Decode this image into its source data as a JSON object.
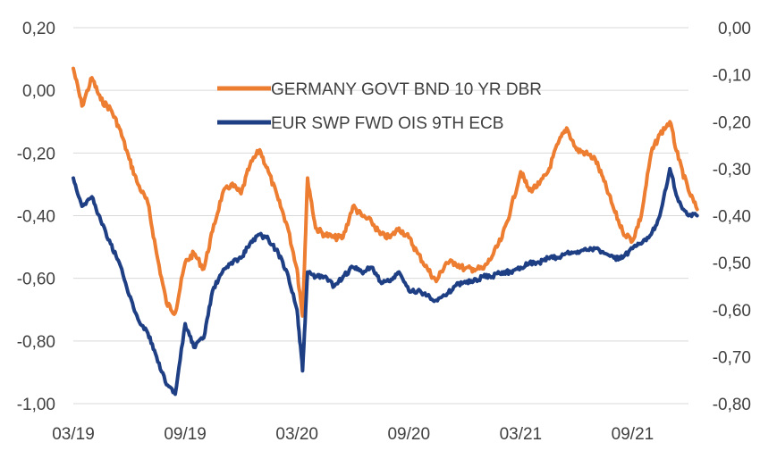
{
  "chart_data": {
    "type": "line",
    "title": "",
    "xlabel": "",
    "ylabel_left": "",
    "ylabel_right": "",
    "grid": true,
    "legend_position": "top-center",
    "x_range": [
      "2019-03",
      "2021-12"
    ],
    "x_ticks": [
      "03/19",
      "09/19",
      "03/20",
      "09/20",
      "03/21",
      "09/21"
    ],
    "ylim_left": [
      -1.0,
      0.2
    ],
    "yticks_left": [
      "0,20",
      "0,00",
      "-0,20",
      "-0,40",
      "-0,60",
      "-0,80",
      "-1,00"
    ],
    "ylim_right": [
      -0.8,
      0.0
    ],
    "yticks_right": [
      "0,00",
      "-0,10",
      "-0,20",
      "-0,30",
      "-0,40",
      "-0,50",
      "-0,60",
      "-0,70",
      "-0,80"
    ],
    "series": [
      {
        "name": "GERMANY GOVT BND 10 YR DBR",
        "axis": "left",
        "color": "#ED7D31",
        "x": [
          "2019-03-01",
          "2019-03-15",
          "2019-04-01",
          "2019-04-15",
          "2019-05-01",
          "2019-05-15",
          "2019-06-01",
          "2019-06-15",
          "2019-07-01",
          "2019-07-15",
          "2019-08-01",
          "2019-08-15",
          "2019-09-01",
          "2019-09-15",
          "2019-10-01",
          "2019-10-15",
          "2019-11-01",
          "2019-11-15",
          "2019-12-01",
          "2019-12-15",
          "2020-01-01",
          "2020-01-15",
          "2020-02-01",
          "2020-02-15",
          "2020-03-01",
          "2020-03-10",
          "2020-03-18",
          "2020-04-01",
          "2020-04-15",
          "2020-05-01",
          "2020-05-15",
          "2020-06-01",
          "2020-06-15",
          "2020-07-01",
          "2020-07-15",
          "2020-08-01",
          "2020-08-15",
          "2020-09-01",
          "2020-09-15",
          "2020-10-01",
          "2020-10-15",
          "2020-11-01",
          "2020-11-15",
          "2020-12-01",
          "2020-12-15",
          "2021-01-01",
          "2021-01-15",
          "2021-02-01",
          "2021-02-15",
          "2021-03-01",
          "2021-03-15",
          "2021-04-01",
          "2021-04-15",
          "2021-05-01",
          "2021-05-15",
          "2021-06-01",
          "2021-06-15",
          "2021-07-01",
          "2021-07-15",
          "2021-08-01",
          "2021-08-15",
          "2021-09-01",
          "2021-09-15",
          "2021-10-01",
          "2021-10-15",
          "2021-11-01",
          "2021-11-15",
          "2021-12-01",
          "2021-12-15"
        ],
        "values": [
          0.07,
          -0.05,
          0.04,
          -0.03,
          -0.06,
          -0.12,
          -0.22,
          -0.3,
          -0.36,
          -0.52,
          -0.68,
          -0.71,
          -0.55,
          -0.52,
          -0.57,
          -0.45,
          -0.33,
          -0.3,
          -0.33,
          -0.24,
          -0.19,
          -0.26,
          -0.35,
          -0.43,
          -0.57,
          -0.72,
          -0.28,
          -0.44,
          -0.46,
          -0.47,
          -0.47,
          -0.37,
          -0.4,
          -0.42,
          -0.46,
          -0.47,
          -0.44,
          -0.47,
          -0.52,
          -0.57,
          -0.61,
          -0.55,
          -0.55,
          -0.57,
          -0.57,
          -0.57,
          -0.53,
          -0.47,
          -0.38,
          -0.26,
          -0.32,
          -0.3,
          -0.26,
          -0.17,
          -0.12,
          -0.19,
          -0.2,
          -0.22,
          -0.29,
          -0.38,
          -0.45,
          -0.48,
          -0.4,
          -0.2,
          -0.14,
          -0.1,
          -0.22,
          -0.32,
          -0.38
        ]
      },
      {
        "name": "EUR SWP FWD OIS 9TH ECB",
        "axis": "right",
        "color": "#1F3F85",
        "x": [
          "2019-03-01",
          "2019-03-15",
          "2019-04-01",
          "2019-04-15",
          "2019-05-01",
          "2019-05-15",
          "2019-06-01",
          "2019-06-15",
          "2019-07-01",
          "2019-07-15",
          "2019-08-01",
          "2019-08-15",
          "2019-09-01",
          "2019-09-15",
          "2019-10-01",
          "2019-10-15",
          "2019-11-01",
          "2019-11-15",
          "2019-12-01",
          "2019-12-15",
          "2020-01-01",
          "2020-01-15",
          "2020-02-01",
          "2020-02-15",
          "2020-03-01",
          "2020-03-10",
          "2020-03-18",
          "2020-04-01",
          "2020-04-15",
          "2020-05-01",
          "2020-05-15",
          "2020-06-01",
          "2020-06-15",
          "2020-07-01",
          "2020-07-15",
          "2020-08-01",
          "2020-08-15",
          "2020-09-01",
          "2020-09-15",
          "2020-10-01",
          "2020-10-15",
          "2020-11-01",
          "2020-11-15",
          "2020-12-01",
          "2020-12-15",
          "2021-01-01",
          "2021-01-15",
          "2021-02-01",
          "2021-02-15",
          "2021-03-01",
          "2021-03-15",
          "2021-04-01",
          "2021-04-15",
          "2021-05-01",
          "2021-05-15",
          "2021-06-01",
          "2021-06-15",
          "2021-07-01",
          "2021-07-15",
          "2021-08-01",
          "2021-08-15",
          "2021-09-01",
          "2021-09-15",
          "2021-10-01",
          "2021-10-15",
          "2021-11-01",
          "2021-11-15",
          "2021-12-01",
          "2021-12-15"
        ],
        "values": [
          -0.32,
          -0.38,
          -0.36,
          -0.41,
          -0.46,
          -0.5,
          -0.57,
          -0.62,
          -0.65,
          -0.7,
          -0.76,
          -0.78,
          -0.63,
          -0.68,
          -0.66,
          -0.56,
          -0.52,
          -0.5,
          -0.49,
          -0.46,
          -0.44,
          -0.45,
          -0.48,
          -0.52,
          -0.6,
          -0.73,
          -0.52,
          -0.53,
          -0.53,
          -0.55,
          -0.53,
          -0.51,
          -0.52,
          -0.51,
          -0.54,
          -0.54,
          -0.52,
          -0.56,
          -0.56,
          -0.57,
          -0.58,
          -0.57,
          -0.55,
          -0.54,
          -0.54,
          -0.53,
          -0.53,
          -0.52,
          -0.52,
          -0.51,
          -0.5,
          -0.5,
          -0.49,
          -0.49,
          -0.48,
          -0.48,
          -0.47,
          -0.47,
          -0.48,
          -0.49,
          -0.49,
          -0.47,
          -0.46,
          -0.44,
          -0.4,
          -0.3,
          -0.37,
          -0.4,
          -0.4
        ]
      }
    ]
  }
}
